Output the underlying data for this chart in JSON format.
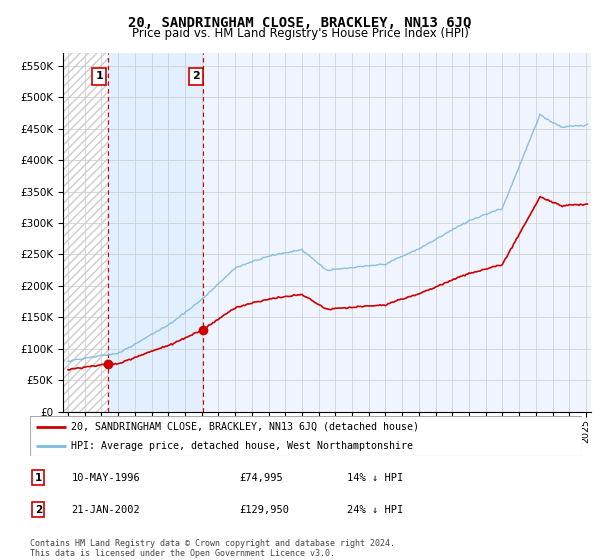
{
  "title": "20, SANDRINGHAM CLOSE, BRACKLEY, NN13 6JQ",
  "subtitle": "Price paid vs. HM Land Registry's House Price Index (HPI)",
  "legend_line1": "20, SANDRINGHAM CLOSE, BRACKLEY, NN13 6JQ (detached house)",
  "legend_line2": "HPI: Average price, detached house, West Northamptonshire",
  "annotation1_label": "1",
  "annotation1_date": "10-MAY-1996",
  "annotation1_price": "£74,995",
  "annotation1_hpi": "14% ↓ HPI",
  "annotation2_label": "2",
  "annotation2_date": "21-JAN-2002",
  "annotation2_price": "£129,950",
  "annotation2_hpi": "24% ↓ HPI",
  "footer": "Contains HM Land Registry data © Crown copyright and database right 2024.\nThis data is licensed under the Open Government Licence v3.0.",
  "sale1_year": 1996.37,
  "sale1_price": 74995,
  "sale2_year": 2002.05,
  "sale2_price": 129950,
  "hpi_color": "#7bbcde",
  "price_color": "#cc0000",
  "sale_marker_color": "#cc0000",
  "dashed_line_color": "#cc0000",
  "ylim_min": 0,
  "ylim_max": 570000,
  "yticks": [
    0,
    50000,
    100000,
    150000,
    200000,
    250000,
    300000,
    350000,
    400000,
    450000,
    500000,
    550000
  ],
  "xlim_start": 1993.7,
  "xlim_end": 2025.3
}
